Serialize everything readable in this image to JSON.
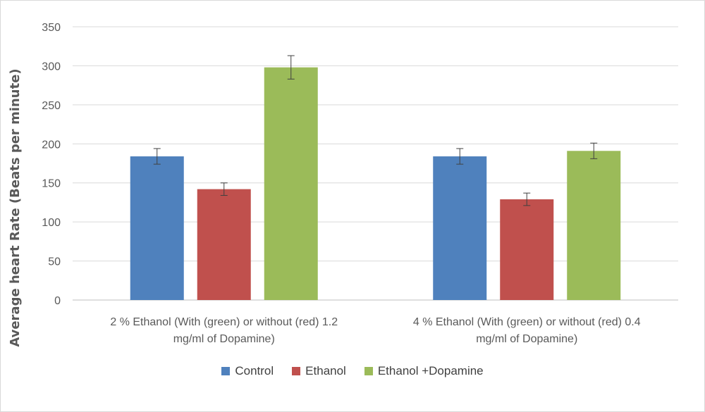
{
  "chart_data": {
    "type": "bar",
    "ylabel": "Average heart Rate (Beats per minute)",
    "ylim": [
      0,
      350
    ],
    "yticks": [
      "0",
      "50",
      "100",
      "150",
      "200",
      "250",
      "300",
      "350"
    ],
    "grid": true,
    "legend_position": "bottom",
    "categories": [
      [
        "2 % Ethanol (With (green) or without (red) 1.2",
        "mg/ml of Dopamine)"
      ],
      [
        "4 % Ethanol (With (green) or without (red) 0.4",
        "mg/ml of Dopamine)"
      ]
    ],
    "series": [
      {
        "name": "Control",
        "color": "#4f81bd",
        "values": [
          184,
          184
        ],
        "errors": [
          10,
          10
        ]
      },
      {
        "name": "Ethanol",
        "color": "#c0504d",
        "values": [
          142,
          129
        ],
        "errors": [
          8,
          8
        ]
      },
      {
        "name": "Ethanol +Dopamine",
        "color": "#9bbb59",
        "values": [
          298,
          191
        ],
        "errors": [
          15,
          10
        ]
      }
    ]
  }
}
